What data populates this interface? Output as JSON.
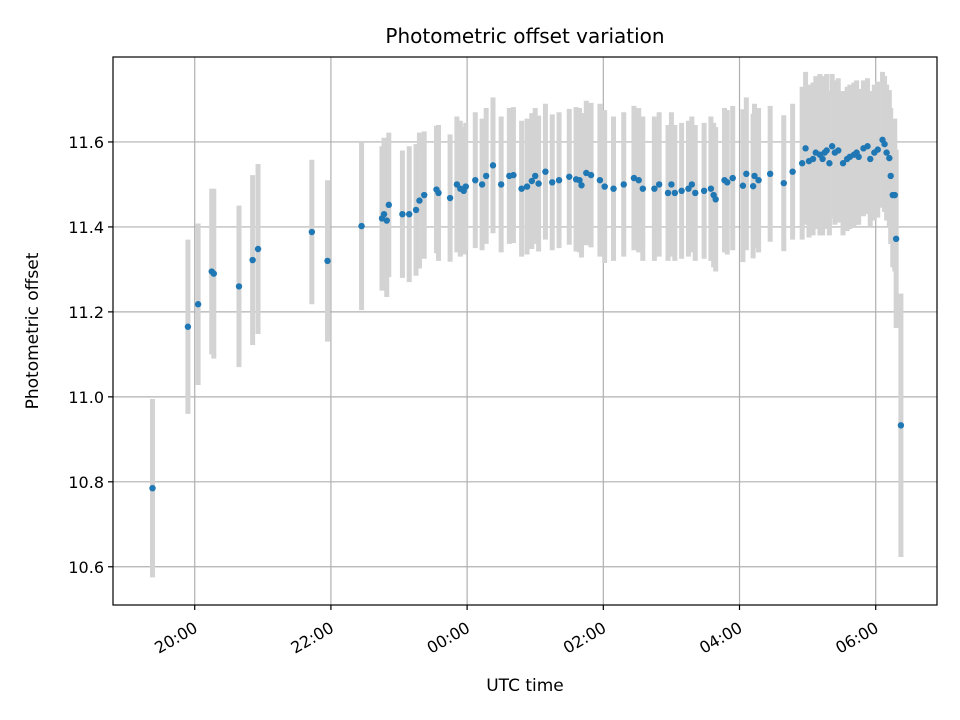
{
  "chart_data": {
    "type": "scatter",
    "title": "Photometric offset variation",
    "xlabel": "UTC time",
    "ylabel": "Photometric offset",
    "x_unit": "hours (UTC, continuing past midnight)",
    "xlim": [
      18.8,
      30.9
    ],
    "ylim": [
      10.51,
      11.8
    ],
    "x_ticks": [
      {
        "value": 20,
        "label": "20:00"
      },
      {
        "value": 22,
        "label": "22:00"
      },
      {
        "value": 24,
        "label": "00:00"
      },
      {
        "value": 26,
        "label": "02:00"
      },
      {
        "value": 28,
        "label": "04:00"
      },
      {
        "value": 30,
        "label": "06:00"
      }
    ],
    "y_ticks": [
      {
        "value": 10.6,
        "label": "10.6"
      },
      {
        "value": 10.8,
        "label": "10.8"
      },
      {
        "value": 11.0,
        "label": "11.0"
      },
      {
        "value": 11.2,
        "label": "11.2"
      },
      {
        "value": 11.4,
        "label": "11.4"
      },
      {
        "value": 11.6,
        "label": "11.6"
      }
    ],
    "grid": true,
    "colors": {
      "points": "#1f77b4",
      "errorbars": "#d3d3d3",
      "grid": "#b0b0b0"
    },
    "series": [
      {
        "points": [
          [
            19.38,
            10.785,
            0.21
          ],
          [
            19.9,
            11.165,
            0.205
          ],
          [
            20.05,
            11.218,
            0.19
          ],
          [
            20.25,
            11.295,
            0.195
          ],
          [
            20.28,
            11.29,
            0.2
          ],
          [
            20.65,
            11.26,
            0.19
          ],
          [
            20.85,
            11.322,
            0.2
          ],
          [
            20.93,
            11.348,
            0.2
          ],
          [
            21.72,
            11.388,
            0.17
          ],
          [
            21.95,
            11.32,
            0.19
          ],
          [
            22.45,
            11.402,
            0.198
          ],
          [
            22.75,
            11.42,
            0.17
          ],
          [
            22.78,
            11.43,
            0.18
          ],
          [
            22.82,
            11.415,
            0.18
          ],
          [
            22.85,
            11.452,
            0.17
          ],
          [
            23.05,
            11.43,
            0.15
          ],
          [
            23.15,
            11.43,
            0.16
          ],
          [
            23.25,
            11.44,
            0.155
          ],
          [
            23.3,
            11.462,
            0.16
          ],
          [
            23.37,
            11.475,
            0.15
          ],
          [
            23.55,
            11.488,
            0.15
          ],
          [
            23.58,
            11.48,
            0.16
          ],
          [
            23.75,
            11.468,
            0.15
          ],
          [
            23.85,
            11.5,
            0.16
          ],
          [
            23.9,
            11.49,
            0.16
          ],
          [
            23.95,
            11.485,
            0.15
          ],
          [
            23.98,
            11.495,
            0.15
          ],
          [
            24.12,
            11.51,
            0.16
          ],
          [
            24.22,
            11.5,
            0.155
          ],
          [
            24.28,
            11.52,
            0.16
          ],
          [
            24.38,
            11.545,
            0.16
          ],
          [
            24.5,
            11.5,
            0.16
          ],
          [
            24.62,
            11.52,
            0.16
          ],
          [
            24.68,
            11.522,
            0.16
          ],
          [
            24.8,
            11.49,
            0.16
          ],
          [
            24.88,
            11.495,
            0.16
          ],
          [
            24.95,
            11.508,
            0.16
          ],
          [
            25.0,
            11.52,
            0.16
          ],
          [
            25.05,
            11.502,
            0.16
          ],
          [
            25.15,
            11.53,
            0.16
          ],
          [
            25.25,
            11.505,
            0.16
          ],
          [
            25.35,
            11.51,
            0.16
          ],
          [
            25.5,
            11.518,
            0.16
          ],
          [
            25.6,
            11.512,
            0.17
          ],
          [
            25.65,
            11.51,
            0.17
          ],
          [
            25.68,
            11.498,
            0.17
          ],
          [
            25.75,
            11.527,
            0.17
          ],
          [
            25.82,
            11.522,
            0.17
          ],
          [
            25.95,
            11.51,
            0.18
          ],
          [
            26.02,
            11.495,
            0.18
          ],
          [
            26.15,
            11.49,
            0.17
          ],
          [
            26.3,
            11.5,
            0.17
          ],
          [
            26.45,
            11.515,
            0.17
          ],
          [
            26.52,
            11.51,
            0.17
          ],
          [
            26.58,
            11.49,
            0.17
          ],
          [
            26.75,
            11.49,
            0.17
          ],
          [
            26.82,
            11.5,
            0.17
          ],
          [
            26.95,
            11.48,
            0.16
          ],
          [
            27.0,
            11.5,
            0.17
          ],
          [
            27.05,
            11.48,
            0.16
          ],
          [
            27.15,
            11.485,
            0.16
          ],
          [
            27.25,
            11.49,
            0.16
          ],
          [
            27.3,
            11.5,
            0.16
          ],
          [
            27.35,
            11.48,
            0.16
          ],
          [
            27.48,
            11.485,
            0.16
          ],
          [
            27.58,
            11.49,
            0.17
          ],
          [
            27.62,
            11.475,
            0.17
          ],
          [
            27.65,
            11.465,
            0.17
          ],
          [
            27.78,
            11.51,
            0.17
          ],
          [
            27.82,
            11.505,
            0.17
          ],
          [
            27.9,
            11.515,
            0.17
          ],
          [
            28.05,
            11.497,
            0.18
          ],
          [
            28.1,
            11.525,
            0.18
          ],
          [
            28.2,
            11.496,
            0.17
          ],
          [
            28.22,
            11.52,
            0.17
          ],
          [
            28.28,
            11.51,
            0.17
          ],
          [
            28.45,
            11.525,
            0.16
          ],
          [
            28.65,
            11.503,
            0.16
          ],
          [
            28.78,
            11.53,
            0.16
          ],
          [
            28.92,
            11.55,
            0.18
          ],
          [
            28.97,
            11.585,
            0.18
          ],
          [
            29.02,
            11.555,
            0.18
          ],
          [
            29.08,
            11.56,
            0.18
          ],
          [
            29.12,
            11.575,
            0.18
          ],
          [
            29.18,
            11.57,
            0.19
          ],
          [
            29.22,
            11.56,
            0.18
          ],
          [
            29.25,
            11.575,
            0.18
          ],
          [
            29.28,
            11.58,
            0.18
          ],
          [
            29.32,
            11.55,
            0.17
          ],
          [
            29.36,
            11.59,
            0.17
          ],
          [
            29.4,
            11.575,
            0.17
          ],
          [
            29.45,
            11.58,
            0.17
          ],
          [
            29.52,
            11.55,
            0.17
          ],
          [
            29.58,
            11.56,
            0.17
          ],
          [
            29.62,
            11.565,
            0.17
          ],
          [
            29.68,
            11.57,
            0.17
          ],
          [
            29.72,
            11.575,
            0.17
          ],
          [
            29.75,
            11.565,
            0.16
          ],
          [
            29.82,
            11.585,
            0.16
          ],
          [
            29.88,
            11.59,
            0.16
          ],
          [
            29.92,
            11.56,
            0.16
          ],
          [
            29.98,
            11.575,
            0.16
          ],
          [
            30.03,
            11.582,
            0.16
          ],
          [
            30.1,
            11.605,
            0.16
          ],
          [
            30.13,
            11.595,
            0.16
          ],
          [
            30.16,
            11.575,
            0.16
          ],
          [
            30.2,
            11.562,
            0.16
          ],
          [
            30.22,
            11.52,
            0.16
          ],
          [
            30.25,
            11.475,
            0.17
          ],
          [
            30.28,
            11.475,
            0.18
          ],
          [
            30.3,
            11.372,
            0.21
          ],
          [
            30.37,
            10.933,
            0.31
          ]
        ]
      }
    ]
  }
}
